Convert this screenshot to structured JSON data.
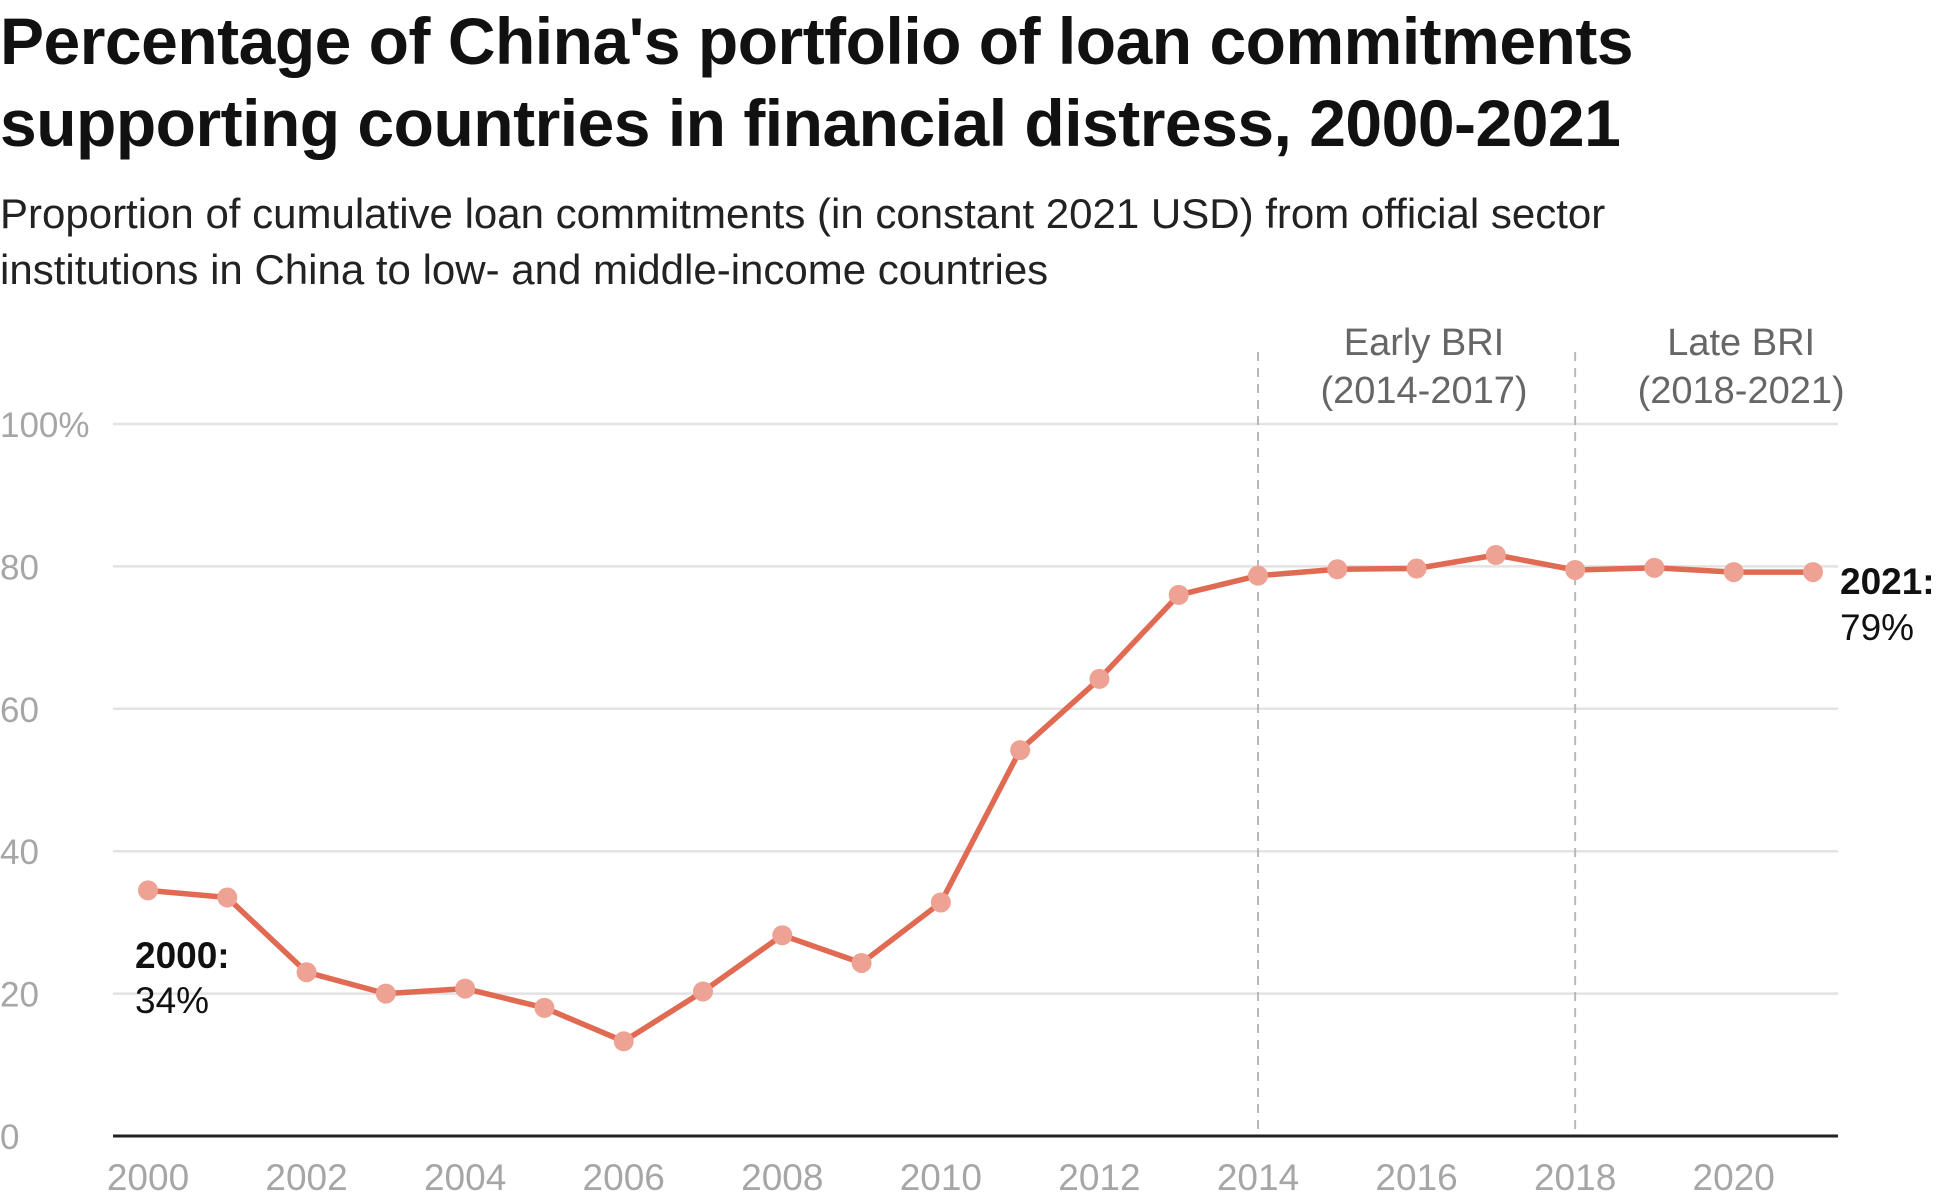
{
  "title": "Percentage of China's portfolio of loan commitments\nsupporting countries in financial distress, 2000-2021",
  "subtitle": "Proportion of cumulative loan commitments (in constant 2021 USD) from official sector\ninstitutions in China to low- and middle-income countries",
  "chart_data": {
    "type": "line",
    "title": "Percentage of China's portfolio of loan commitments supporting countries in financial distress, 2000-2021",
    "subtitle": "Proportion of cumulative loan commitments (in constant 2021 USD) from official sector institutions in China to low- and middle-income countries",
    "xlabel": "",
    "ylabel": "",
    "x": [
      2000,
      2001,
      2002,
      2003,
      2004,
      2005,
      2006,
      2007,
      2008,
      2009,
      2010,
      2011,
      2012,
      2013,
      2014,
      2015,
      2016,
      2017,
      2018,
      2019,
      2020,
      2021
    ],
    "series": [
      {
        "values": [
          34.5,
          33.5,
          23,
          20,
          20.7,
          18,
          13.3,
          20.3,
          28.2,
          24.3,
          32.8,
          54.2,
          64.2,
          76,
          78.7,
          79.6,
          79.7,
          81.6,
          79.5,
          79.8,
          79.2,
          79.2
        ],
        "color": "#e06a52"
      }
    ],
    "xlim": [
      2000,
      2021
    ],
    "ylim": [
      0,
      100
    ],
    "x_ticks": [
      2000,
      2002,
      2004,
      2006,
      2008,
      2010,
      2012,
      2014,
      2016,
      2018,
      2020
    ],
    "y_ticks": [
      {
        "value": 0,
        "label": "0"
      },
      {
        "value": 20,
        "label": "20"
      },
      {
        "value": 40,
        "label": "40"
      },
      {
        "value": 60,
        "label": "60"
      },
      {
        "value": 80,
        "label": "80"
      },
      {
        "value": 100,
        "label": "100%"
      }
    ],
    "grid": true,
    "reference_lines": [
      {
        "x": 2014,
        "label_line1": "Early BRI",
        "label_line2": "(2014-2017)"
      },
      {
        "x": 2018,
        "label_line1": "Late BRI",
        "label_line2": "(2018-2021)"
      }
    ],
    "annotations": [
      {
        "x": 2000,
        "label_bold": "2000:",
        "label_value": "34%"
      },
      {
        "x": 2021,
        "label_bold": "2021:",
        "label_value": "79%"
      }
    ],
    "colors": {
      "line": "#e06a52",
      "marker": "#eea294",
      "grid": "#e3e3e3",
      "axis": "#222222",
      "tick_label": "#a6a6a6",
      "reference_line": "#b8b8b8",
      "reference_label": "#666666"
    }
  }
}
